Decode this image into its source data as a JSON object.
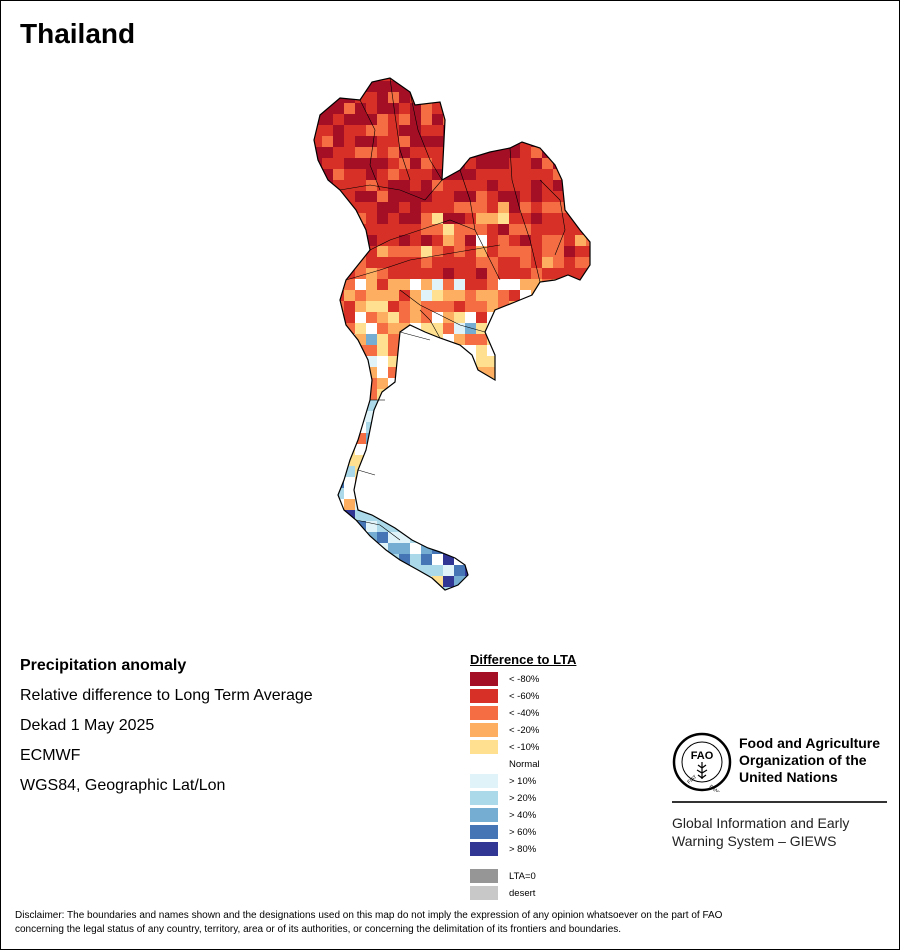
{
  "map": {
    "title": "Thailand",
    "info": {
      "title": "Precipitation anomaly",
      "subtitle": "Relative difference to Long Term Average",
      "dekad": "Dekad 1 May 2025",
      "model": "ECMWF",
      "projection": "WGS84, Geographic Lat/Lon"
    },
    "legend": {
      "title": "Difference to LTA",
      "items": [
        {
          "label": "< -80%",
          "color": "#a50f26"
        },
        {
          "label": "< -60%",
          "color": "#d73027"
        },
        {
          "label": "< -40%",
          "color": "#f46d43"
        },
        {
          "label": "< -20%",
          "color": "#fdae61"
        },
        {
          "label": "< -10%",
          "color": "#fee090"
        },
        {
          "label": "Normal",
          "color": "#ffffff"
        },
        {
          "label": "> 10%",
          "color": "#e0f3f8"
        },
        {
          "label": "> 20%",
          "color": "#abd9e9"
        },
        {
          "label": "> 40%",
          "color": "#74add1"
        },
        {
          "label": "> 60%",
          "color": "#4575b4"
        },
        {
          "label": "> 80%",
          "color": "#313695"
        },
        {
          "label": "LTA=0",
          "color": "#969696"
        },
        {
          "label": "desert",
          "color": "#c8c8c8"
        }
      ]
    },
    "org": {
      "name_line1": "Food and Agriculture",
      "name_line2": "Organization of the",
      "name_line3": "United Nations",
      "system_line1": "Global Information and Early",
      "system_line2": "Warning System – GIEWS",
      "logo_text": "FAO",
      "logo_motto_left": "FIAT",
      "logo_motto_right": "PANIS"
    },
    "disclaimer_line1": "Disclaimer: The boundaries and names shown and the designations used on this map do not imply the expression of any opinion whatsoever on the part of FAO",
    "disclaimer_line2": "concerning the legal status of any country, territory, area or of its authorities, or concerning the delimitation of its frontiers and boundaries."
  }
}
